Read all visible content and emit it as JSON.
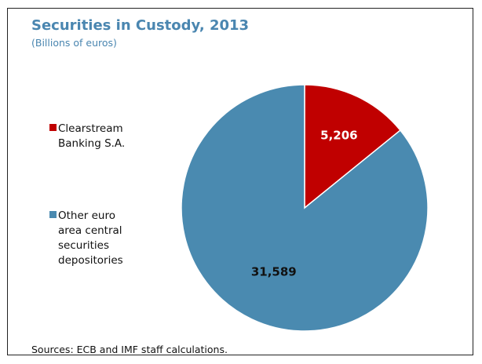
{
  "chart_data": {
    "type": "pie",
    "title": "Securities in Custody, 2013",
    "subtitle": "(Billions of euros)",
    "slices": [
      {
        "label": "Clearstream\nBanking S.A.",
        "value": 5206,
        "display": "5,206",
        "color": "#c00000"
      },
      {
        "label": "Other euro\narea central\nsecurities\ndepositories",
        "value": 31589,
        "display": "31,589",
        "color": "#4a8ab0"
      }
    ],
    "legend_position": "left",
    "source": "Sources: ECB and IMF staff calculations."
  }
}
